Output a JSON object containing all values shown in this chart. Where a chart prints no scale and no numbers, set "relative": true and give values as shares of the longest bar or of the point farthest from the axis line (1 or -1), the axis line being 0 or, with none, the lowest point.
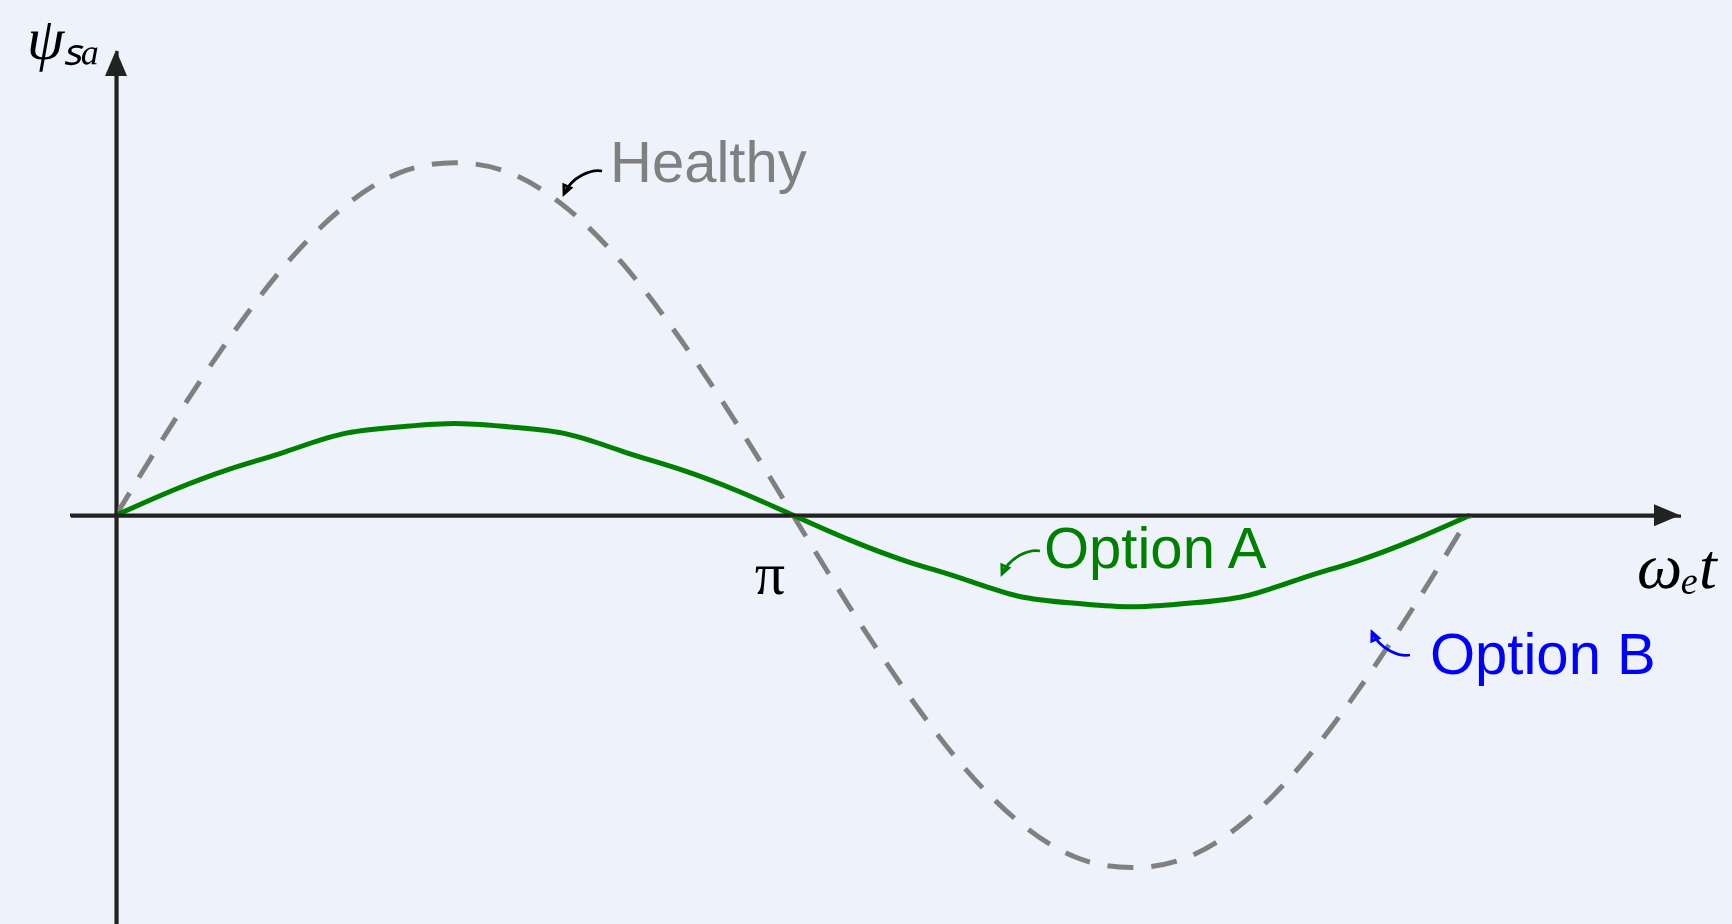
{
  "chart_data": {
    "type": "line",
    "xlabel": "ωₑt",
    "ylabel": "ψₛₐ",
    "relative": true,
    "line_style": "solid",
    "categories": [
      null,
      null,
      null,
      null,
      null,
      null,
      null,
      null,
      null,
      null,
      null,
      null,
      null,
      null,
      null,
      null,
      null,
      null,
      null,
      null,
      null,
      null,
      null,
      null,
      null
    ],
    "series": [
      {
        "name": "Healthy",
        "color": "#808080",
        "line_style": "dashed",
        "values": [
          0,
          0.26,
          0.5,
          0.71,
          0.87,
          0.97,
          1,
          0.97,
          0.87,
          0.71,
          0.5,
          0.26,
          0,
          -0.26,
          -0.5,
          -0.71,
          -0.87,
          -0.97,
          -1,
          -0.97,
          -0.87,
          -0.71,
          -0.5,
          -0.26,
          0
        ]
      },
      {
        "name": "Option A",
        "color": "#008000",
        "values": [
          0,
          0.07,
          0.13,
          0.18,
          0.23,
          0.25,
          0.26,
          0.25,
          0.23,
          0.18,
          0.13,
          0.07,
          0,
          -0.07,
          -0.13,
          -0.18,
          -0.23,
          -0.25,
          -0.26,
          -0.25,
          -0.23,
          -0.18,
          -0.13,
          -0.07,
          0
        ]
      }
    ],
    "annotations": [
      "π",
      "Option B"
    ]
  }
}
